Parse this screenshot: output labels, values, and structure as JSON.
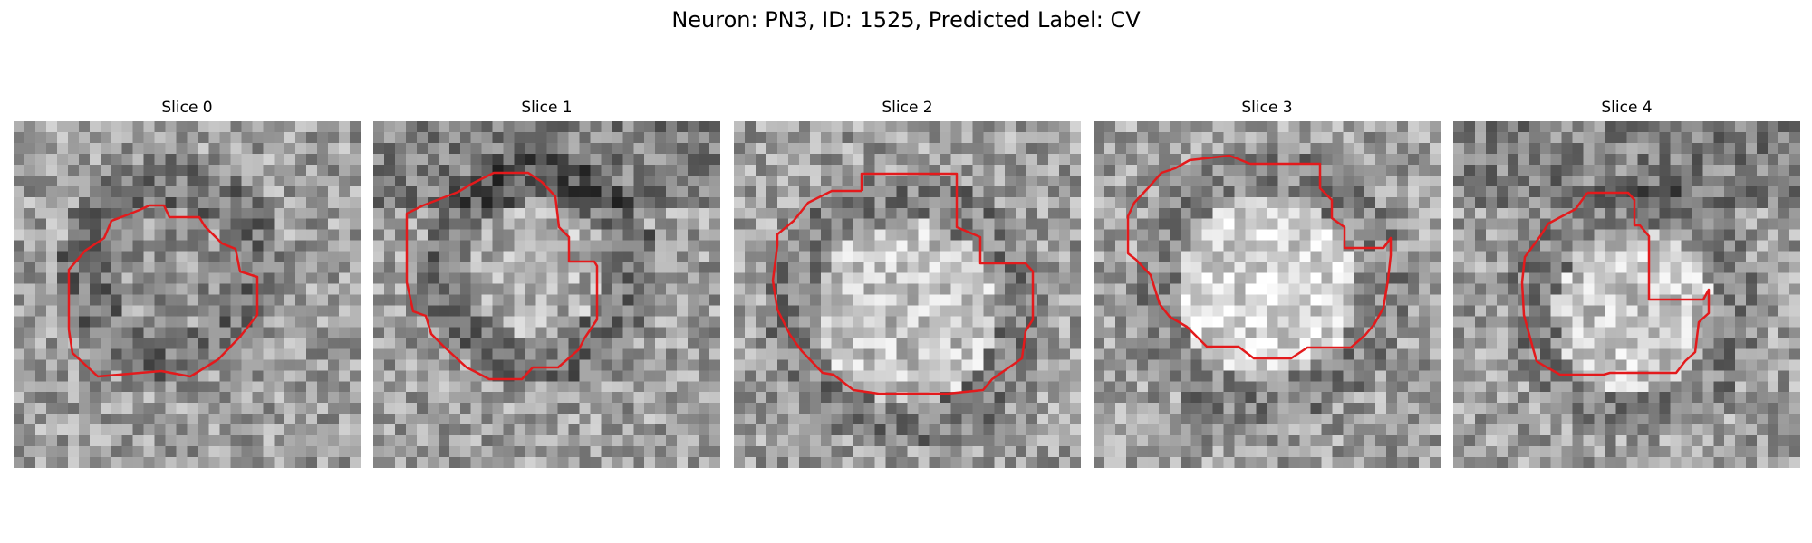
{
  "figure": {
    "title": "Neuron: PN3, ID: 1525, Predicted Label: CV"
  },
  "colors": {
    "contour": "#e31a1c",
    "background": "#ffffff"
  },
  "panels": [
    {
      "title": "Slice 0"
    },
    {
      "title": "Slice 1"
    },
    {
      "title": "Slice 2"
    },
    {
      "title": "Slice 3"
    },
    {
      "title": "Slice 4"
    }
  ]
}
